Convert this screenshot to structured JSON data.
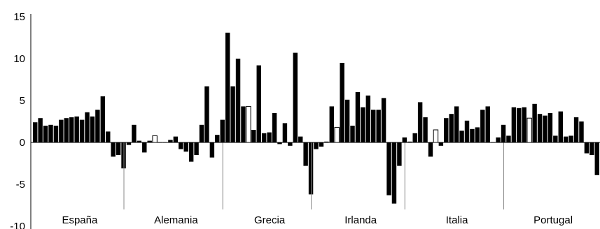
{
  "chart_data": {
    "type": "bar",
    "title": "",
    "xlabel": "",
    "ylabel": "",
    "ylim": [
      -10,
      15
    ],
    "y_ticks": [
      "15",
      "10",
      "5",
      "0",
      "-5",
      "-10"
    ],
    "y_tick_values": [
      15,
      10,
      5,
      0,
      -5,
      -10
    ],
    "grid": false,
    "legend": "none",
    "colors": {
      "bar": "#000000",
      "highlight_bar": "#ffffff",
      "axis": "#000000",
      "separator": "#888888"
    },
    "groups": [
      {
        "label": "España",
        "values": [
          2.4,
          2.9,
          2.0,
          2.1,
          2.0,
          2.7,
          2.9,
          3.0,
          3.1,
          2.7,
          3.6,
          3.1,
          3.9,
          5.5,
          1.3,
          -1.7,
          -1.5,
          -3.1
        ],
        "highlight": []
      },
      {
        "label": "Alemania",
        "values": [
          -0.3,
          2.1,
          0.2,
          -1.2,
          0.2,
          0.8,
          0.0,
          0.0,
          0.3,
          0.7,
          -0.8,
          -1.1,
          -2.3,
          -1.5,
          2.1,
          6.7,
          -1.8,
          0.9,
          2.7
        ],
        "highlight": [
          5
        ]
      },
      {
        "label": "Grecia",
        "values": [
          13.1,
          6.7,
          10.0,
          4.3,
          4.3,
          1.5,
          9.2,
          1.1,
          1.2,
          3.5,
          -0.2,
          2.3,
          -0.4,
          10.7,
          0.7,
          -2.8,
          -6.2
        ],
        "highlight": [
          4
        ]
      },
      {
        "label": "Irlanda",
        "values": [
          -0.8,
          -0.5,
          0.1,
          4.3,
          1.8,
          9.5,
          5.1,
          2.0,
          6.0,
          4.2,
          5.6,
          3.9,
          3.9,
          5.3,
          -6.3,
          -7.3,
          -2.8,
          0.6
        ],
        "highlight": [
          4
        ]
      },
      {
        "label": "Italia",
        "values": [
          0.1,
          1.1,
          4.8,
          3.0,
          -1.7,
          1.5,
          -0.4,
          2.9,
          3.4,
          4.3,
          1.4,
          2.6,
          1.6,
          1.8,
          3.9,
          4.3,
          0.0,
          0.6,
          2.1
        ],
        "highlight": [
          5
        ]
      },
      {
        "label": "Portugal",
        "values": [
          0.8,
          4.2,
          4.1,
          4.2,
          2.9,
          4.6,
          3.4,
          3.2,
          3.5,
          0.8,
          3.7,
          0.7,
          0.8,
          3.0,
          2.5,
          -1.3,
          -1.5,
          -3.9
        ],
        "highlight": [
          4
        ]
      }
    ]
  }
}
